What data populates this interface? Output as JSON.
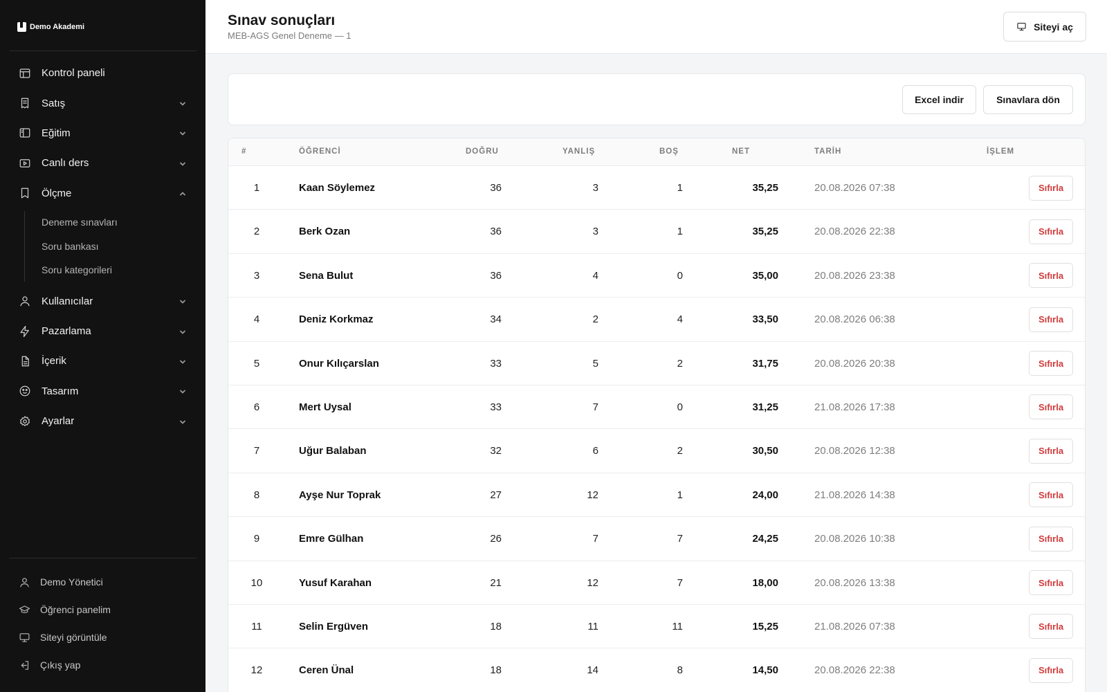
{
  "brand": {
    "name": "Demo Akademi"
  },
  "sidebar": {
    "items": [
      {
        "label": "Kontrol paneli",
        "icon": "layout-icon"
      },
      {
        "label": "Satış",
        "icon": "receipt-icon"
      },
      {
        "label": "Eğitim",
        "icon": "panel-icon"
      },
      {
        "label": "Canlı ders",
        "icon": "play-icon"
      },
      {
        "label": "Ölçme",
        "icon": "bookmark-icon"
      },
      {
        "label": "Kullanıcılar",
        "icon": "user-icon"
      },
      {
        "label": "Pazarlama",
        "icon": "bolt-icon"
      },
      {
        "label": "İçerik",
        "icon": "file-icon"
      },
      {
        "label": "Tasarım",
        "icon": "palette-icon"
      },
      {
        "label": "Ayarlar",
        "icon": "gear-icon"
      }
    ],
    "olcme_sub": [
      {
        "label": "Deneme sınavları"
      },
      {
        "label": "Soru bankası"
      },
      {
        "label": "Soru kategorileri"
      }
    ],
    "footer": [
      {
        "label": "Demo Yönetici",
        "icon": "user-icon"
      },
      {
        "label": "Öğrenci panelim",
        "icon": "graduation-cap-icon"
      },
      {
        "label": "Siteyi görüntüle",
        "icon": "monitor-icon"
      },
      {
        "label": "Çıkış yap",
        "icon": "logout-icon"
      }
    ]
  },
  "header": {
    "title": "Sınav sonuçları",
    "subtitle": "MEB-AGS Genel Deneme — 1",
    "site_button": "Siteyi aç"
  },
  "actions": {
    "excel": "Excel indir",
    "back": "Sınavlara dön"
  },
  "table": {
    "columns": {
      "idx": "#",
      "student": "ÖĞRENCİ",
      "dogru": "DOĞRU",
      "yanlis": "YANLIŞ",
      "bos": "BOŞ",
      "net": "NET",
      "tarih": "TARİH",
      "islem": "İŞLEM"
    },
    "reset_label": "Sıfırla",
    "rows": [
      {
        "idx": "1",
        "name": "Kaan Söylemez",
        "dogru": "36",
        "yanlis": "3",
        "bos": "1",
        "net": "35,25",
        "tarih": "20.08.2026 07:38"
      },
      {
        "idx": "2",
        "name": "Berk Ozan",
        "dogru": "36",
        "yanlis": "3",
        "bos": "1",
        "net": "35,25",
        "tarih": "20.08.2026 22:38"
      },
      {
        "idx": "3",
        "name": "Sena Bulut",
        "dogru": "36",
        "yanlis": "4",
        "bos": "0",
        "net": "35,00",
        "tarih": "20.08.2026 23:38"
      },
      {
        "idx": "4",
        "name": "Deniz Korkmaz",
        "dogru": "34",
        "yanlis": "2",
        "bos": "4",
        "net": "33,50",
        "tarih": "20.08.2026 06:38"
      },
      {
        "idx": "5",
        "name": "Onur Kılıçarslan",
        "dogru": "33",
        "yanlis": "5",
        "bos": "2",
        "net": "31,75",
        "tarih": "20.08.2026 20:38"
      },
      {
        "idx": "6",
        "name": "Mert Uysal",
        "dogru": "33",
        "yanlis": "7",
        "bos": "0",
        "net": "31,25",
        "tarih": "21.08.2026 17:38"
      },
      {
        "idx": "7",
        "name": "Uğur Balaban",
        "dogru": "32",
        "yanlis": "6",
        "bos": "2",
        "net": "30,50",
        "tarih": "20.08.2026 12:38"
      },
      {
        "idx": "8",
        "name": "Ayşe Nur Toprak",
        "dogru": "27",
        "yanlis": "12",
        "bos": "1",
        "net": "24,00",
        "tarih": "21.08.2026 14:38"
      },
      {
        "idx": "9",
        "name": "Emre Gülhan",
        "dogru": "26",
        "yanlis": "7",
        "bos": "7",
        "net": "24,25",
        "tarih": "20.08.2026 10:38"
      },
      {
        "idx": "10",
        "name": "Yusuf Karahan",
        "dogru": "21",
        "yanlis": "12",
        "bos": "7",
        "net": "18,00",
        "tarih": "20.08.2026 13:38"
      },
      {
        "idx": "11",
        "name": "Selin Ergüven",
        "dogru": "18",
        "yanlis": "11",
        "bos": "11",
        "net": "15,25",
        "tarih": "21.08.2026 07:38"
      },
      {
        "idx": "12",
        "name": "Ceren Ünal",
        "dogru": "18",
        "yanlis": "14",
        "bos": "8",
        "net": "14,50",
        "tarih": "20.08.2026 22:38"
      }
    ]
  },
  "colors": {
    "sidebar_bg": "#121212",
    "danger": "#d03a3a",
    "page_bg": "#f4f5f6"
  }
}
